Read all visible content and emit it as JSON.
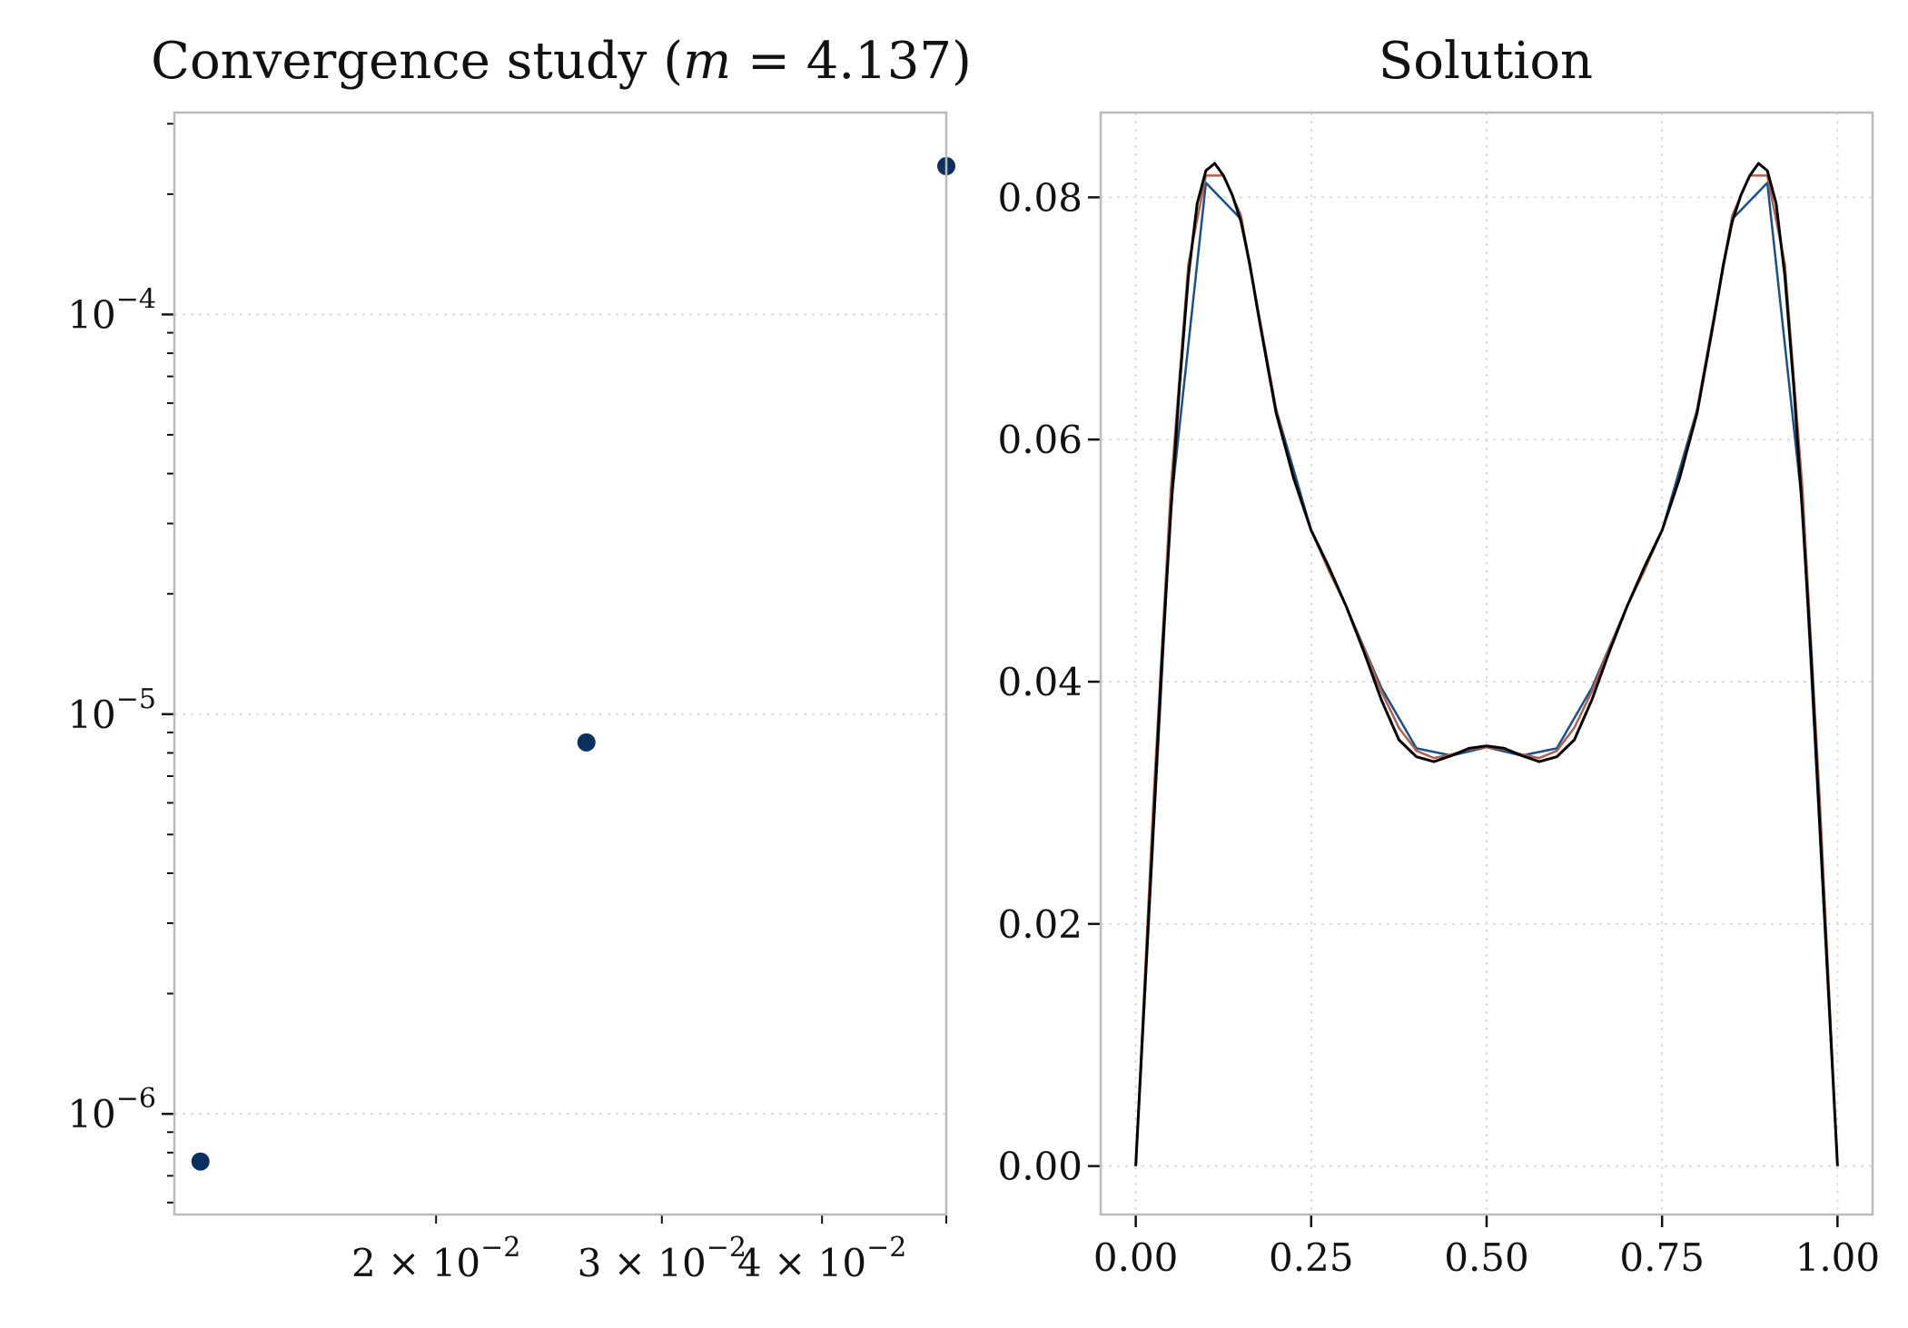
{
  "figure": {
    "colors": {
      "marker": "#0b3060",
      "fine_line": "#000000",
      "coarse_line": "#1b4f85",
      "mid_line": "#b06050",
      "frame": "#bbbbbb",
      "grid": "#dddddd"
    }
  },
  "chart_data": [
    {
      "type": "scatter",
      "title": "Convergence study (m = 4.137)",
      "title_parts": {
        "prefix": "Convergence study (",
        "var": "m",
        "eq": " = 4.137)"
      },
      "xscale": "log",
      "yscale": "log",
      "xlim": [
        0.0125,
        0.05
      ],
      "ylim": [
        5.6e-07,
        0.00032
      ],
      "x": [
        0.0131,
        0.0262,
        0.05
      ],
      "y": [
        7.6e-07,
        8.5e-06,
        0.000235
      ],
      "x_ticks": [
        {
          "value": 0.02,
          "label": "2 × 10",
          "exp": "−2"
        },
        {
          "value": 0.03,
          "label": "3 × 10",
          "exp": "−2"
        },
        {
          "value": 0.04,
          "label": "4 × 10",
          "exp": "−2"
        }
      ],
      "y_ticks": [
        {
          "value": 1e-06,
          "label": "10",
          "exp": "−6"
        },
        {
          "value": 1e-05,
          "label": "10",
          "exp": "−5"
        },
        {
          "value": 0.0001,
          "label": "10",
          "exp": "−4"
        }
      ],
      "grid": true,
      "xlabel": "",
      "ylabel": ""
    },
    {
      "type": "line",
      "title": "Solution",
      "xlim": [
        -0.05,
        1.05
      ],
      "ylim": [
        -0.004,
        0.087
      ],
      "x_ticks": [
        "0.00",
        "0.25",
        "0.50",
        "0.75",
        "1.00"
      ],
      "y_ticks": [
        "0.00",
        "0.02",
        "0.04",
        "0.06",
        "0.08"
      ],
      "grid": true,
      "xlabel": "",
      "ylabel": "",
      "series": [
        {
          "x": [
            0,
            0.05,
            0.1,
            0.15,
            0.2,
            0.25,
            0.3,
            0.35,
            0.4,
            0.45,
            0.5,
            0.55,
            0.6,
            0.65,
            0.7,
            0.75,
            0.8,
            0.85,
            0.9,
            0.95,
            1
          ],
          "values": [
            0,
            0.0545,
            0.0812,
            0.0782,
            0.0625,
            0.0525,
            0.0462,
            0.0395,
            0.0345,
            0.0339,
            0.0346,
            0.0339,
            0.0345,
            0.0395,
            0.0462,
            0.0525,
            0.0625,
            0.0782,
            0.0812,
            0.0545,
            0
          ]
        },
        {
          "x": [
            0,
            0.025,
            0.05,
            0.075,
            0.1,
            0.125,
            0.15,
            0.175,
            0.2,
            0.225,
            0.25,
            0.275,
            0.3,
            0.325,
            0.35,
            0.375,
            0.4,
            0.425,
            0.45,
            0.475,
            0.5,
            0.525,
            0.55,
            0.575,
            0.6,
            0.625,
            0.65,
            0.675,
            0.7,
            0.725,
            0.75,
            0.775,
            0.8,
            0.825,
            0.85,
            0.875,
            0.9,
            0.925,
            0.95,
            0.975,
            1
          ],
          "values": [
            0,
            0.03,
            0.056,
            0.0745,
            0.0818,
            0.0818,
            0.0785,
            0.0705,
            0.0625,
            0.0568,
            0.0525,
            0.0492,
            0.0462,
            0.0428,
            0.0392,
            0.0362,
            0.0343,
            0.0337,
            0.034,
            0.0344,
            0.0346,
            0.0344,
            0.034,
            0.0337,
            0.0343,
            0.0362,
            0.0392,
            0.0428,
            0.0462,
            0.0492,
            0.0525,
            0.0568,
            0.0625,
            0.0705,
            0.0785,
            0.0818,
            0.0818,
            0.0745,
            0.056,
            0.03,
            0
          ]
        },
        {
          "x": [
            0,
            0.0125,
            0.025,
            0.0375,
            0.05,
            0.0625,
            0.075,
            0.0875,
            0.1,
            0.1125,
            0.125,
            0.1375,
            0.15,
            0.1625,
            0.175,
            0.1875,
            0.2,
            0.225,
            0.25,
            0.275,
            0.3,
            0.325,
            0.35,
            0.375,
            0.4,
            0.425,
            0.45,
            0.475,
            0.5,
            0.525,
            0.55,
            0.575,
            0.6,
            0.625,
            0.65,
            0.675,
            0.7,
            0.725,
            0.75,
            0.775,
            0.8,
            0.8125,
            0.825,
            0.8375,
            0.85,
            0.8625,
            0.875,
            0.8875,
            0.9,
            0.9125,
            0.925,
            0.9375,
            0.95,
            0.9625,
            0.975,
            0.9875,
            1
          ],
          "values": [
            0,
            0.014,
            0.028,
            0.042,
            0.054,
            0.0645,
            0.0735,
            0.0795,
            0.0822,
            0.0828,
            0.0818,
            0.0802,
            0.078,
            0.0745,
            0.0702,
            0.0662,
            0.0622,
            0.0568,
            0.0525,
            0.0495,
            0.0462,
            0.0425,
            0.0385,
            0.0352,
            0.0338,
            0.0334,
            0.0339,
            0.0345,
            0.0347,
            0.0345,
            0.0339,
            0.0334,
            0.0338,
            0.0352,
            0.0385,
            0.0425,
            0.0462,
            0.0495,
            0.0525,
            0.0568,
            0.0622,
            0.0662,
            0.0702,
            0.0745,
            0.078,
            0.0802,
            0.0818,
            0.0828,
            0.0822,
            0.0795,
            0.0735,
            0.0645,
            0.054,
            0.042,
            0.028,
            0.014,
            0
          ]
        }
      ]
    }
  ]
}
